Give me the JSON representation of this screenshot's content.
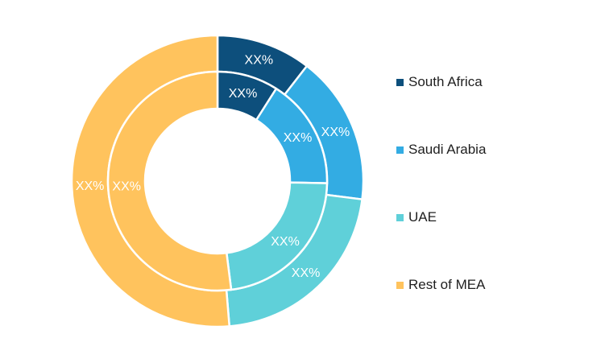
{
  "chart_data": {
    "type": "pie",
    "variant": "double-donut",
    "categories": [
      "South Africa",
      "Saudi Arabia",
      "UAE",
      "Rest of MEA"
    ],
    "colors": [
      "#0d4f7c",
      "#33ace3",
      "#5fd0d9",
      "#ffc35d"
    ],
    "series": [
      {
        "ring": "outer",
        "values": [
          10.5,
          16.5,
          21.7,
          51.3
        ],
        "labels": [
          "XX%",
          "XX%",
          "XX%",
          "XX%"
        ]
      },
      {
        "ring": "inner",
        "values": [
          9.0,
          16.3,
          22.7,
          52.0
        ],
        "labels": [
          "XX%",
          "XX%",
          "XX%",
          "XX%"
        ]
      }
    ],
    "legend_position": "right"
  }
}
